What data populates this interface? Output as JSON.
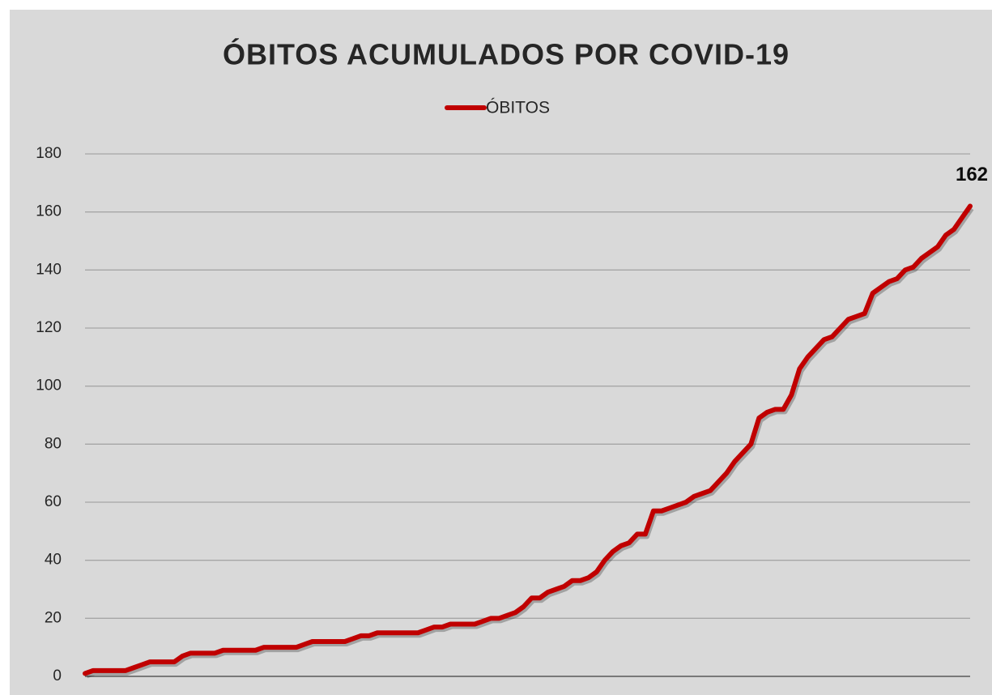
{
  "chart_data": {
    "type": "line",
    "title": "ÓBITOS ACUMULADOS POR COVID-19",
    "categories": [
      null,
      null,
      null,
      null,
      null,
      null,
      null,
      null,
      null,
      null,
      null,
      null,
      null,
      null,
      null,
      null,
      null,
      null,
      null,
      null,
      null,
      null,
      null,
      null,
      null,
      null,
      null,
      null,
      null,
      null,
      null,
      null,
      null,
      null,
      null,
      null,
      null,
      null,
      null,
      null,
      null,
      null,
      null,
      null,
      null,
      null,
      null,
      null,
      null,
      null,
      null,
      null,
      null,
      null,
      null,
      null,
      null,
      null,
      null,
      null,
      null,
      null,
      null,
      null,
      null,
      null,
      null,
      null,
      null,
      null,
      null,
      null,
      null,
      null,
      null,
      null,
      null,
      null,
      null,
      null,
      null,
      null,
      null,
      null,
      null,
      null,
      null,
      null,
      null,
      null,
      null,
      null,
      null,
      null,
      null,
      null,
      null,
      null,
      null,
      null,
      null,
      null,
      null,
      null,
      null,
      null,
      null,
      null,
      null,
      null
    ],
    "series": [
      {
        "name": "ÓBITOS",
        "color": "#c00000",
        "values": [
          1,
          2,
          2,
          2,
          2,
          2,
          3,
          4,
          5,
          5,
          5,
          5,
          7,
          8,
          8,
          8,
          8,
          9,
          9,
          9,
          9,
          9,
          10,
          10,
          10,
          10,
          10,
          11,
          12,
          12,
          12,
          12,
          12,
          13,
          14,
          14,
          15,
          15,
          15,
          15,
          15,
          15,
          16,
          17,
          17,
          18,
          18,
          18,
          18,
          19,
          20,
          20,
          21,
          22,
          24,
          27,
          27,
          29,
          30,
          31,
          33,
          33,
          34,
          36,
          40,
          43,
          45,
          46,
          49,
          49,
          57,
          57,
          58,
          59,
          60,
          62,
          63,
          64,
          67,
          70,
          74,
          77,
          80,
          89,
          91,
          92,
          92,
          97,
          106,
          110,
          113,
          116,
          117,
          120,
          123,
          124,
          125,
          132,
          134,
          136,
          137,
          140,
          141,
          144,
          146,
          148,
          152,
          154,
          158,
          162
        ]
      }
    ],
    "ylim": [
      0,
      180
    ],
    "yticks": [
      0,
      20,
      40,
      60,
      80,
      100,
      120,
      140,
      160,
      180
    ],
    "grid": true,
    "legend": "top"
  }
}
